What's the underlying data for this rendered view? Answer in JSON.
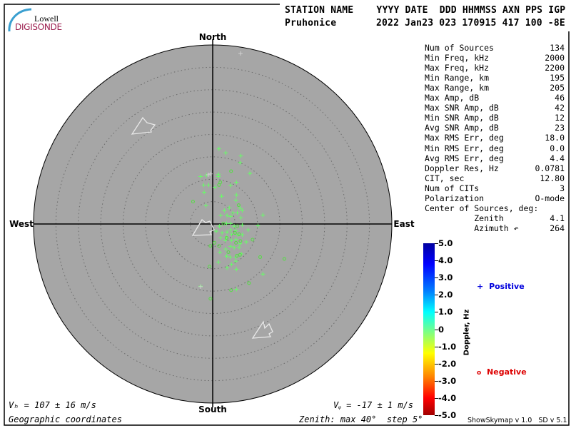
{
  "logo": {
    "line1": "Lowell",
    "line2": "DIGISONDE"
  },
  "header": {
    "labels": "STATION NAME    YYYY DATE  DDD HHMMSS AXN PPS IGP",
    "station": "Pruhonice",
    "values": "2022 Jan23 023 170915 417 100 -8E"
  },
  "stats": [
    {
      "label": "Num of Sources",
      "value": "134"
    },
    {
      "label": "Min Freq, kHz",
      "value": "2000"
    },
    {
      "label": "Max Freq, kHz",
      "value": "2200"
    },
    {
      "label": "Min Range, km",
      "value": "195"
    },
    {
      "label": "Max Range, km",
      "value": "205"
    },
    {
      "label": "Max Amp, dB",
      "value": "46"
    },
    {
      "label": "Max SNR Amp, dB",
      "value": "42"
    },
    {
      "label": "Min SNR Amp, dB",
      "value": "12"
    },
    {
      "label": "Avg SNR Amp, dB",
      "value": "23"
    },
    {
      "label": "Max RMS Err, deg",
      "value": "18.0"
    },
    {
      "label": "Min RMS Err, deg",
      "value": "0.0"
    },
    {
      "label": "Avg RMS Err, deg",
      "value": "4.4"
    },
    {
      "label": "Doppler Res, Hz",
      "value": "0.0781"
    },
    {
      "label": "CIT, sec",
      "value": "12.80"
    },
    {
      "label": "Num of CITs",
      "value": "3"
    },
    {
      "label": "Polarization",
      "value": "O-mode"
    },
    {
      "label": "Center of Sources, deg:",
      "value": ""
    },
    {
      "label": "          Zenith",
      "value": "4.1"
    },
    {
      "label": "          Azimuth ↶",
      "value": "264"
    }
  ],
  "compass": {
    "north": "North",
    "south": "South",
    "west": "West",
    "east": "East"
  },
  "footer": {
    "vh": "Vₕ = 107 ± 16 m/s",
    "vz": "Vᵩ = -17 ± 1 m/s",
    "coords": "Geographic coordinates",
    "zenith": "Zenith: max 40°  step 5°",
    "version": "ShowSkymap v 1.0   SD v 5.1"
  },
  "legend": {
    "positive_symbol": "+",
    "positive": "Positive",
    "positive_color": "#0000dd",
    "negative_symbol": "o",
    "negative": "Negative",
    "negative_color": "#dd0000"
  },
  "colors": {
    "plot_bg": "#a6a6a6",
    "source_green": "#66ff66",
    "source_gray": "#d0d0d0"
  },
  "chart_data": {
    "type": "scatter",
    "projection": "polar skymap, zenith angle radial",
    "zenith_max_deg": 40,
    "zenith_step_deg": 5,
    "colorbar": {
      "label": "Doppler, Hz",
      "range": [
        -5.0,
        5.0
      ],
      "colormap": "jet",
      "ticks": [
        "5.0",
        "4.0",
        "3.0",
        "2.0",
        "1.0",
        "0",
        "-1.0",
        "-2.0",
        "-3.0",
        "-4.0",
        "-5.0"
      ]
    },
    "units": "east/north offset in zenith degrees",
    "positive": [
      [
        1.4,
        16.8
      ],
      [
        2.9,
        15.9
      ],
      [
        6.3,
        15.2
      ],
      [
        6.1,
        13.7
      ],
      [
        8.3,
        11.3
      ],
      [
        -2.7,
        10.6
      ],
      [
        -1.4,
        10.9
      ],
      [
        1.3,
        11.1
      ],
      [
        1.3,
        10.6
      ],
      [
        -2.0,
        8.7
      ],
      [
        -0.9,
        8.7
      ],
      [
        0.5,
        8.2
      ],
      [
        4.0,
        8.6
      ],
      [
        5.3,
        9.3
      ],
      [
        -1.9,
        7.1
      ],
      [
        2.0,
        6.2
      ],
      [
        5.3,
        6.5
      ],
      [
        5.2,
        5.3
      ],
      [
        -1.5,
        4.1
      ],
      [
        3.7,
        3.6
      ],
      [
        2.6,
        3.0
      ],
      [
        4.5,
        2.5
      ],
      [
        5.5,
        2.5
      ],
      [
        6.6,
        3.0
      ],
      [
        6.1,
        3.5
      ],
      [
        11.2,
        2.0
      ],
      [
        1.8,
        1.9
      ],
      [
        3.2,
        1.9
      ],
      [
        4.0,
        1.7
      ],
      [
        6.3,
        1.4
      ],
      [
        3.1,
        0.1
      ],
      [
        4.0,
        0.1
      ],
      [
        1.5,
        -0.5
      ],
      [
        4.8,
        -0.5
      ],
      [
        6.6,
        -0.2
      ],
      [
        10.1,
        -0.4
      ],
      [
        0.8,
        -1.6
      ],
      [
        2.1,
        -2.0
      ],
      [
        3.2,
        -1.8
      ],
      [
        4.0,
        -1.3
      ],
      [
        5.2,
        -1.5
      ],
      [
        7.9,
        -1.3
      ],
      [
        1.8,
        -3.1
      ],
      [
        3.1,
        -2.9
      ],
      [
        4.2,
        -2.3
      ],
      [
        5.6,
        -2.4
      ],
      [
        6.6,
        -2.4
      ],
      [
        2.8,
        -3.7
      ],
      [
        4.2,
        -3.7
      ],
      [
        5.2,
        -3.4
      ],
      [
        7.5,
        -4.0
      ],
      [
        6.1,
        -4.4
      ],
      [
        4.0,
        -5.0
      ],
      [
        4.8,
        -5.3
      ],
      [
        2.9,
        -5.6
      ],
      [
        5.9,
        -5.2
      ],
      [
        1.6,
        -6.3
      ],
      [
        3.1,
        -7.2
      ],
      [
        3.9,
        -7.4
      ],
      [
        5.2,
        -7.4
      ],
      [
        6.4,
        -6.7
      ],
      [
        1.3,
        -8.5
      ],
      [
        4.2,
        -9.0
      ],
      [
        5.2,
        -8.3
      ],
      [
        3.2,
        -9.8
      ],
      [
        5.3,
        -10.1
      ],
      [
        11.2,
        -11.2
      ],
      [
        -2.7,
        -13.9
      ],
      [
        5.3,
        -14.6
      ]
    ],
    "positive_gray": [
      [
        6.2,
        38.1
      ],
      [
        -2.7,
        -14.0
      ],
      [
        -1.0,
        11.0
      ],
      [
        -0.5,
        11.2
      ]
    ],
    "negative": [
      [
        4.1,
        11.8
      ],
      [
        1.7,
        9.3
      ],
      [
        1.4,
        8.7
      ],
      [
        -4.4,
        5.0
      ],
      [
        5.8,
        4.2
      ],
      [
        2.4,
        0.1
      ],
      [
        5.5,
        -0.5
      ],
      [
        5.0,
        -2.0
      ],
      [
        5.9,
        -2.3
      ],
      [
        3.1,
        -3.1
      ],
      [
        8.9,
        -3.5
      ],
      [
        6.2,
        -3.8
      ],
      [
        0.4,
        -4.2
      ],
      [
        5.2,
        -4.2
      ],
      [
        -0.5,
        -4.9
      ],
      [
        1.4,
        -4.9
      ],
      [
        3.5,
        -6.3
      ],
      [
        6.1,
        -6.9
      ],
      [
        5.4,
        -7.1
      ],
      [
        10.6,
        -7.4
      ],
      [
        16.0,
        -7.8
      ],
      [
        -0.7,
        -9.5
      ],
      [
        8.1,
        -13.2
      ],
      [
        4.1,
        -14.8
      ],
      [
        -0.5,
        -16.7
      ]
    ]
  }
}
